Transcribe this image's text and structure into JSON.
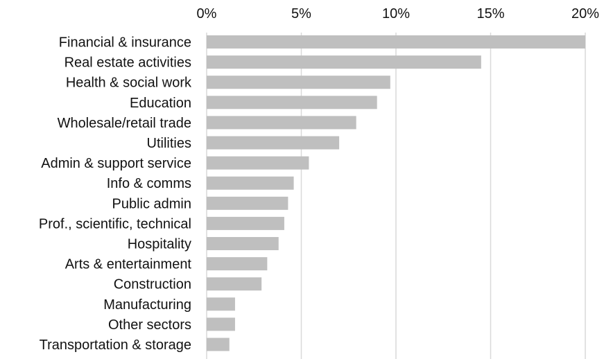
{
  "chart_data": {
    "type": "bar",
    "orientation": "horizontal",
    "categories": [
      "Financial & insurance",
      "Real estate activities",
      "Health & social work",
      "Education",
      "Wholesale/retail trade",
      "Utilities",
      "Admin & support service",
      "Info & comms",
      "Public admin",
      "Prof., scientific, technical",
      "Hospitality",
      "Arts & entertainment",
      "Construction",
      "Manufacturing",
      "Other sectors",
      "Transportation & storage"
    ],
    "values": [
      20.0,
      14.5,
      9.7,
      9.0,
      7.9,
      7.0,
      5.4,
      4.6,
      4.3,
      4.1,
      3.8,
      3.2,
      2.9,
      1.5,
      1.5,
      1.2
    ],
    "x_ticks": [
      "0%",
      "5%",
      "10%",
      "15%",
      "20%"
    ],
    "x_tick_values": [
      0,
      5,
      10,
      15,
      20
    ],
    "xlim": [
      0,
      20
    ],
    "axis_position": "top",
    "grid": true,
    "bar_color": "#bfbfbf",
    "grid_color": "#d9d9d9",
    "title": "",
    "xlabel": "",
    "ylabel": ""
  }
}
